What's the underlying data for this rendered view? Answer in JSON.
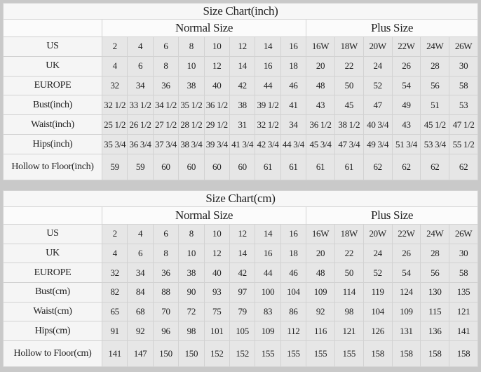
{
  "charts": [
    {
      "id": "chart-inch",
      "title": "Size Chart(inch)",
      "normal_label": "Normal Size",
      "plus_label": "Plus Size",
      "rows": [
        {
          "label": "US",
          "values": [
            "2",
            "4",
            "6",
            "8",
            "10",
            "12",
            "14",
            "16",
            "16W",
            "18W",
            "20W",
            "22W",
            "24W",
            "26W"
          ]
        },
        {
          "label": "UK",
          "values": [
            "4",
            "6",
            "8",
            "10",
            "12",
            "14",
            "16",
            "18",
            "20",
            "22",
            "24",
            "26",
            "28",
            "30"
          ]
        },
        {
          "label": "EUROPE",
          "values": [
            "32",
            "34",
            "36",
            "38",
            "40",
            "42",
            "44",
            "46",
            "48",
            "50",
            "52",
            "54",
            "56",
            "58"
          ]
        },
        {
          "label": "Bust(inch)",
          "values": [
            "32 1/2",
            "33 1/2",
            "34 1/2",
            "35 1/2",
            "36 1/2",
            "38",
            "39 1/2",
            "41",
            "43",
            "45",
            "47",
            "49",
            "51",
            "53"
          ]
        },
        {
          "label": "Waist(inch)",
          "values": [
            "25 1/2",
            "26 1/2",
            "27 1/2",
            "28 1/2",
            "29 1/2",
            "31",
            "32 1/2",
            "34",
            "36 1/2",
            "38 1/2",
            "40 3/4",
            "43",
            "45 1/2",
            "47 1/2"
          ]
        },
        {
          "label": "Hips(inch)",
          "values": [
            "35 3/4",
            "36 3/4",
            "37 3/4",
            "38 3/4",
            "39 3/4",
            "41 3/4",
            "42 3/4",
            "44 3/4",
            "45 3/4",
            "47 3/4",
            "49 3/4",
            "51 3/4",
            "53 3/4",
            "55 1/2"
          ]
        },
        {
          "label": "Hollow to Floor(inch)",
          "values": [
            "59",
            "59",
            "60",
            "60",
            "60",
            "60",
            "61",
            "61",
            "61",
            "61",
            "62",
            "62",
            "62",
            "62"
          ]
        }
      ]
    },
    {
      "id": "chart-cm",
      "title": "Size Chart(cm)",
      "normal_label": "Normal Size",
      "plus_label": "Plus Size",
      "rows": [
        {
          "label": "US",
          "values": [
            "2",
            "4",
            "6",
            "8",
            "10",
            "12",
            "14",
            "16",
            "16W",
            "18W",
            "20W",
            "22W",
            "24W",
            "26W"
          ]
        },
        {
          "label": "UK",
          "values": [
            "4",
            "6",
            "8",
            "10",
            "12",
            "14",
            "16",
            "18",
            "20",
            "22",
            "24",
            "26",
            "28",
            "30"
          ]
        },
        {
          "label": "EUROPE",
          "values": [
            "32",
            "34",
            "36",
            "38",
            "40",
            "42",
            "44",
            "46",
            "48",
            "50",
            "52",
            "54",
            "56",
            "58"
          ]
        },
        {
          "label": "Bust(cm)",
          "values": [
            "82",
            "84",
            "88",
            "90",
            "93",
            "97",
            "100",
            "104",
            "109",
            "114",
            "119",
            "124",
            "130",
            "135"
          ]
        },
        {
          "label": "Waist(cm)",
          "values": [
            "65",
            "68",
            "70",
            "72",
            "75",
            "79",
            "83",
            "86",
            "92",
            "98",
            "104",
            "109",
            "115",
            "121"
          ]
        },
        {
          "label": "Hips(cm)",
          "values": [
            "91",
            "92",
            "96",
            "98",
            "101",
            "105",
            "109",
            "112",
            "116",
            "121",
            "126",
            "131",
            "136",
            "141"
          ]
        },
        {
          "label": "Hollow to Floor(cm)",
          "values": [
            "141",
            "147",
            "150",
            "150",
            "152",
            "152",
            "155",
            "155",
            "155",
            "155",
            "158",
            "158",
            "158",
            "158"
          ]
        }
      ]
    }
  ]
}
